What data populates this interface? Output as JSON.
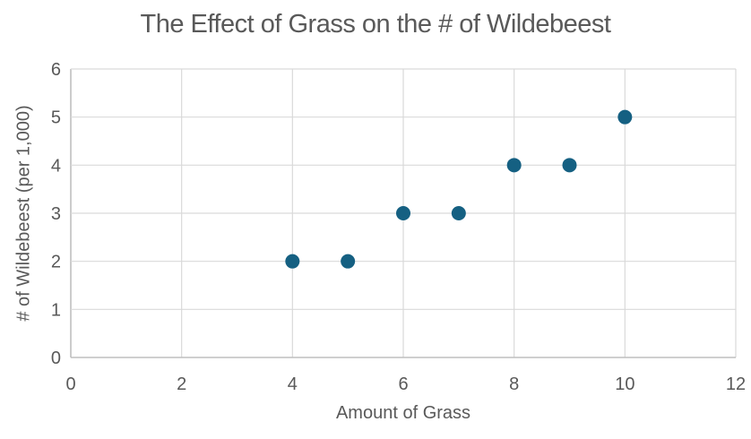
{
  "chart_data": {
    "type": "scatter",
    "title": "The Effect of Grass on the # of Wildebeest",
    "xlabel": "Amount of Grass",
    "ylabel": "# of Wildebeest (per 1,000)",
    "xlim": [
      0,
      12
    ],
    "ylim": [
      0,
      6
    ],
    "xticks": [
      0,
      2,
      4,
      6,
      8,
      10,
      12
    ],
    "yticks": [
      0,
      1,
      2,
      3,
      4,
      5,
      6
    ],
    "grid": true,
    "legend": false,
    "x": [
      4,
      5,
      6,
      7,
      8,
      9,
      10
    ],
    "y": [
      2,
      2,
      3,
      3,
      4,
      4,
      5
    ],
    "marker_size_px": 16,
    "colors": {
      "marker": "#156082",
      "gridline": "#D9D9D9",
      "axis_line": "#BFBFBF",
      "text": "#595959"
    }
  }
}
